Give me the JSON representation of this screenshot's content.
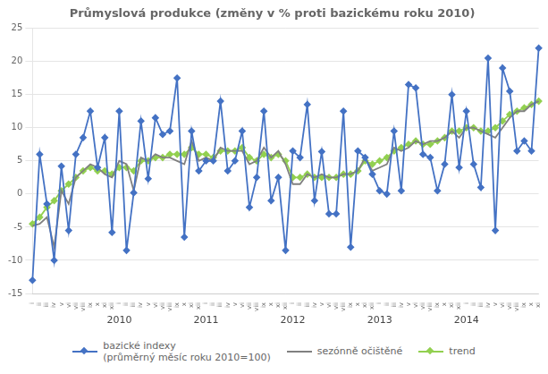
{
  "chart_data": {
    "type": "line",
    "title": "Průmyslová produkce (změny v % proti bazickému roku 2010)",
    "categories": [
      "i",
      "ii",
      "iii",
      "iv",
      "v",
      "vi",
      "vii",
      "viii",
      "ix",
      "x",
      "xi",
      "xii",
      "i",
      "ii",
      "iii",
      "iv",
      "v",
      "vi",
      "vii",
      "viii",
      "ix",
      "x",
      "xi",
      "xii",
      "i",
      "ii",
      "iii",
      "iv",
      "v",
      "vi",
      "vii",
      "viii",
      "ix",
      "x",
      "xi",
      "xii",
      "i",
      "ii",
      "iii",
      "iv",
      "v",
      "vi",
      "vii",
      "viii",
      "ix",
      "x",
      "xi",
      "xii",
      "i",
      "ii",
      "iii",
      "iv",
      "v",
      "vi",
      "vii",
      "viii",
      "ix",
      "x",
      "xi",
      "xii",
      "i",
      "ii",
      "iii",
      "iv",
      "v",
      "vi",
      "vii",
      "viii",
      "ix",
      "x",
      "xi"
    ],
    "series": [
      {
        "name": "bazické indexy\n(průměrný měsíc roku 2010=100)",
        "color": "#4472C4",
        "marker": "diamond",
        "values": [
          -13.0,
          6.0,
          -1.5,
          -10.0,
          4.2,
          -5.5,
          6.0,
          8.5,
          12.5,
          4.0,
          8.5,
          -5.8,
          12.5,
          -8.5,
          0.2,
          11.0,
          2.3,
          11.5,
          9.0,
          9.5,
          17.5,
          -6.5,
          9.5,
          3.5,
          5.0,
          5.0,
          14.0,
          3.5,
          5.0,
          9.5,
          -2.0,
          2.5,
          12.5,
          -1.0,
          2.5,
          -8.5,
          6.5,
          5.5,
          13.5,
          -1.0,
          6.4,
          -3.0,
          -3.0,
          12.5,
          -8.0,
          6.5,
          5.5,
          3.0,
          0.5,
          0.0,
          9.5,
          0.5,
          16.5,
          16.0,
          6.0,
          5.5,
          0.5,
          4.5,
          15.0,
          4.0,
          12.5,
          4.5,
          1.0,
          20.5,
          -5.5,
          19.0,
          15.5,
          6.5,
          8.0,
          6.5,
          22.0
        ]
      },
      {
        "name": "sezónně očištěné",
        "color": "#808080",
        "marker": "none",
        "values": [
          -4.8,
          -4.5,
          -3.5,
          -8.0,
          0.5,
          -1.5,
          2.5,
          3.5,
          4.5,
          4.0,
          3.0,
          2.5,
          5.0,
          4.5,
          0.5,
          5.5,
          5.0,
          6.0,
          5.5,
          5.5,
          5.0,
          4.5,
          8.0,
          5.0,
          5.5,
          5.0,
          7.0,
          6.5,
          6.5,
          6.5,
          4.5,
          5.0,
          7.0,
          5.5,
          6.5,
          4.5,
          1.5,
          1.5,
          3.0,
          2.5,
          3.0,
          2.5,
          2.5,
          3.0,
          3.0,
          3.5,
          5.5,
          3.5,
          4.0,
          4.5,
          7.0,
          6.5,
          7.0,
          8.0,
          7.5,
          8.0,
          8.0,
          8.5,
          9.5,
          8.5,
          10.0,
          10.0,
          9.5,
          9.0,
          8.5,
          10.0,
          11.5,
          12.5,
          12.5,
          13.5,
          14.0
        ]
      },
      {
        "name": "trend",
        "color": "#92D050",
        "marker": "diamond",
        "values": [
          -4.5,
          -3.5,
          -2.0,
          -1.0,
          0.5,
          1.5,
          2.5,
          3.5,
          4.0,
          3.5,
          3.5,
          3.0,
          4.0,
          4.0,
          3.5,
          5.0,
          5.0,
          5.5,
          5.5,
          6.0,
          6.0,
          6.0,
          7.0,
          6.0,
          6.0,
          5.5,
          6.5,
          6.5,
          6.5,
          7.0,
          5.5,
          5.0,
          6.0,
          5.5,
          6.0,
          5.0,
          2.5,
          2.5,
          3.0,
          2.5,
          2.5,
          2.5,
          2.5,
          3.0,
          3.0,
          3.5,
          5.0,
          4.5,
          5.0,
          5.5,
          6.5,
          7.0,
          7.5,
          8.0,
          7.5,
          7.5,
          8.0,
          8.5,
          9.5,
          9.5,
          10.0,
          10.0,
          9.5,
          9.5,
          10.0,
          11.0,
          12.0,
          12.5,
          13.0,
          13.5,
          14.0
        ]
      }
    ],
    "ylim": [
      -15,
      25
    ],
    "yticks": [
      -15,
      -10,
      -5,
      0,
      5,
      10,
      15,
      20,
      25
    ],
    "annotations": [
      {
        "text": "2010",
        "x": 12
      },
      {
        "text": "2011",
        "x": 24
      },
      {
        "text": "2012",
        "x": 36
      },
      {
        "text": "2013",
        "x": 48
      },
      {
        "text": "2014",
        "x": 60
      }
    ],
    "grid": "y",
    "legend": "bottom"
  }
}
